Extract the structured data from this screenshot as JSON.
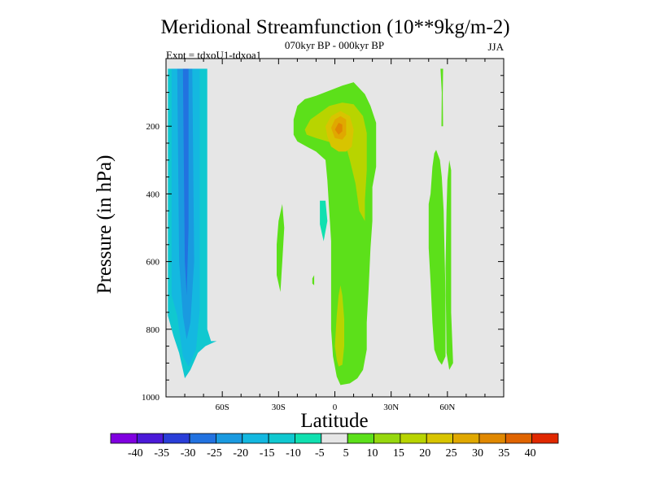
{
  "chart_data": {
    "type": "heatmap",
    "title": "Meridional Streamfunction (10**9kg/m-2)",
    "subtitle": "070kyr BP - 000kyr BP",
    "left_annotation": "Expt = tdxoU1-tdxoa1",
    "right_annotation": "JJA",
    "xlabel": "Latitude",
    "ylabel": "Pressure (in hPa)",
    "xlim": [
      -90,
      90
    ],
    "ylim": [
      1000,
      0
    ],
    "x_ticks": [
      {
        "value": -60,
        "label": "60S"
      },
      {
        "value": -30,
        "label": "30S"
      },
      {
        "value": 0,
        "label": "0"
      },
      {
        "value": 30,
        "label": "30N"
      },
      {
        "value": 60,
        "label": "60N"
      }
    ],
    "y_ticks": [
      {
        "value": 200,
        "label": "200"
      },
      {
        "value": 400,
        "label": "400"
      },
      {
        "value": 600,
        "label": "600"
      },
      {
        "value": 800,
        "label": "800"
      },
      {
        "value": 1000,
        "label": "1000"
      }
    ],
    "background_color": "#e6e6e6",
    "colorbar": {
      "labels": [
        "-40",
        "-35",
        "-30",
        "-25",
        "-20",
        "-15",
        "-10",
        "-5",
        "5",
        "10",
        "15",
        "20",
        "25",
        "30",
        "35",
        "40"
      ],
      "colors": [
        "#8000e0",
        "#4b19d8",
        "#2a3ed8",
        "#2272e0",
        "#1a9ae0",
        "#14b8e0",
        "#10c8d0",
        "#10e0b0",
        "#e6e6e6",
        "#5ce01a",
        "#96d80e",
        "#b8d400",
        "#d8c400",
        "#e0a800",
        "#e08800",
        "#e06400",
        "#e02800"
      ]
    },
    "contour_regions": [
      {
        "level": -10,
        "color": "#10c8d0",
        "points": [
          [
            -89,
            30
          ],
          [
            -68,
            30
          ],
          [
            -68,
            800
          ],
          [
            -66,
            835
          ],
          [
            -63,
            835
          ],
          [
            -65,
            840
          ],
          [
            -69,
            850
          ],
          [
            -73,
            870
          ],
          [
            -77,
            920
          ],
          [
            -80,
            945
          ],
          [
            -83,
            870
          ],
          [
            -86,
            820
          ],
          [
            -89,
            760
          ]
        ]
      },
      {
        "level": -15,
        "color": "#14b8e0",
        "points": [
          [
            -87,
            30
          ],
          [
            -72,
            30
          ],
          [
            -72,
            740
          ],
          [
            -74,
            860
          ],
          [
            -78,
            910
          ],
          [
            -81,
            880
          ],
          [
            -84,
            760
          ],
          [
            -87,
            700
          ]
        ]
      },
      {
        "level": -20,
        "color": "#1a9ae0",
        "points": [
          [
            -84,
            30
          ],
          [
            -76,
            30
          ],
          [
            -75,
            600
          ],
          [
            -77,
            780
          ],
          [
            -79,
            830
          ],
          [
            -81,
            760
          ],
          [
            -83,
            600
          ]
        ]
      },
      {
        "level": -25,
        "color": "#2272e0",
        "points": [
          [
            -81,
            30
          ],
          [
            -78,
            30
          ],
          [
            -78,
            500
          ],
          [
            -79,
            700
          ],
          [
            -80,
            600
          ]
        ]
      },
      {
        "level": -10,
        "color": "#10e0b0",
        "points": [
          [
            -8,
            420
          ],
          [
            -5,
            420
          ],
          [
            -4,
            480
          ],
          [
            -6,
            540
          ],
          [
            -8,
            490
          ]
        ]
      },
      {
        "level": 5,
        "color": "#5ce01a",
        "points": [
          [
            -30,
            480
          ],
          [
            -28,
            430
          ],
          [
            -27,
            500
          ],
          [
            -28,
            600
          ],
          [
            -29,
            690
          ],
          [
            -31,
            640
          ],
          [
            -31,
            550
          ]
        ]
      },
      {
        "level": 5,
        "color": "#5ce01a",
        "points": [
          [
            -12,
            650
          ],
          [
            -11,
            640
          ],
          [
            -11,
            670
          ],
          [
            -12,
            665
          ]
        ]
      },
      {
        "level": 5,
        "color": "#5ce01a",
        "points": [
          [
            -22,
            180
          ],
          [
            -20,
            140
          ],
          [
            -16,
            120
          ],
          [
            -10,
            110
          ],
          [
            -3,
            95
          ],
          [
            4,
            80
          ],
          [
            10,
            70
          ],
          [
            16,
            105
          ],
          [
            19,
            140
          ],
          [
            22,
            190
          ],
          [
            22,
            320
          ],
          [
            20,
            380
          ],
          [
            20,
            480
          ],
          [
            19,
            560
          ],
          [
            18,
            680
          ],
          [
            17,
            780
          ],
          [
            17,
            860
          ],
          [
            15,
            920
          ],
          [
            12,
            945
          ],
          [
            8,
            960
          ],
          [
            3,
            965
          ],
          [
            1,
            940
          ],
          [
            -1,
            880
          ],
          [
            -2,
            800
          ],
          [
            -2,
            540
          ],
          [
            -3,
            450
          ],
          [
            -4,
            360
          ],
          [
            -5,
            300
          ],
          [
            -10,
            275
          ],
          [
            -15,
            260
          ],
          [
            -20,
            245
          ],
          [
            -22,
            225
          ]
        ]
      },
      {
        "level": 15,
        "color": "#b8d400",
        "points": [
          [
            -16,
            210
          ],
          [
            -13,
            180
          ],
          [
            -8,
            160
          ],
          [
            -3,
            140
          ],
          [
            4,
            130
          ],
          [
            10,
            135
          ],
          [
            15,
            170
          ],
          [
            17,
            220
          ],
          [
            17,
            330
          ],
          [
            16,
            420
          ],
          [
            16,
            480
          ],
          [
            13,
            450
          ],
          [
            11,
            370
          ],
          [
            8,
            300
          ],
          [
            6,
            260
          ],
          [
            2,
            255
          ],
          [
            -4,
            245
          ],
          [
            -10,
            235
          ],
          [
            -15,
            225
          ]
        ]
      },
      {
        "level": 15,
        "color": "#b8d400",
        "points": [
          [
            0,
            850
          ],
          [
            1,
            760
          ],
          [
            2,
            700
          ],
          [
            3,
            670
          ],
          [
            4,
            700
          ],
          [
            5,
            770
          ],
          [
            5,
            850
          ],
          [
            4,
            905
          ],
          [
            2,
            910
          ],
          [
            1,
            890
          ]
        ]
      },
      {
        "level": 20,
        "color": "#d8c400",
        "points": [
          [
            -5,
            200
          ],
          [
            -2,
            170
          ],
          [
            3,
            155
          ],
          [
            8,
            170
          ],
          [
            10,
            210
          ],
          [
            9,
            260
          ],
          [
            6,
            275
          ],
          [
            2,
            275
          ],
          [
            -2,
            260
          ],
          [
            -4,
            230
          ]
        ]
      },
      {
        "level": 25,
        "color": "#e0a800",
        "points": [
          [
            -2,
            205
          ],
          [
            0,
            180
          ],
          [
            3,
            170
          ],
          [
            6,
            180
          ],
          [
            6,
            225
          ],
          [
            4,
            240
          ],
          [
            0,
            235
          ]
        ]
      },
      {
        "level": 30,
        "color": "#e08800",
        "points": [
          [
            0,
            210
          ],
          [
            2,
            190
          ],
          [
            4,
            195
          ],
          [
            4,
            215
          ],
          [
            2,
            225
          ]
        ]
      },
      {
        "level": 5,
        "color": "#5ce01a",
        "points": [
          [
            50,
            430
          ],
          [
            51,
            400
          ],
          [
            52,
            320
          ],
          [
            53,
            280
          ],
          [
            54,
            270
          ],
          [
            56,
            300
          ],
          [
            57,
            350
          ],
          [
            58,
            450
          ],
          [
            59,
            700
          ],
          [
            59,
            880
          ],
          [
            57,
            905
          ],
          [
            55,
            890
          ],
          [
            53,
            860
          ],
          [
            52,
            780
          ],
          [
            51,
            660
          ],
          [
            50,
            560
          ]
        ]
      },
      {
        "level": 5,
        "color": "#5ce01a",
        "points": [
          [
            57,
            100
          ],
          [
            56.3,
            30
          ],
          [
            57.7,
            30
          ],
          [
            57.5,
            110
          ],
          [
            57.7,
            200
          ],
          [
            56.8,
            200
          ]
        ]
      },
      {
        "level": 5,
        "color": "#5ce01a",
        "points": [
          [
            60,
            360
          ],
          [
            61,
            300
          ],
          [
            62,
            330
          ],
          [
            62,
            750
          ],
          [
            63,
            900
          ],
          [
            61,
            920
          ],
          [
            59.5,
            870
          ],
          [
            59,
            620
          ],
          [
            59.5,
            450
          ]
        ]
      }
    ]
  }
}
